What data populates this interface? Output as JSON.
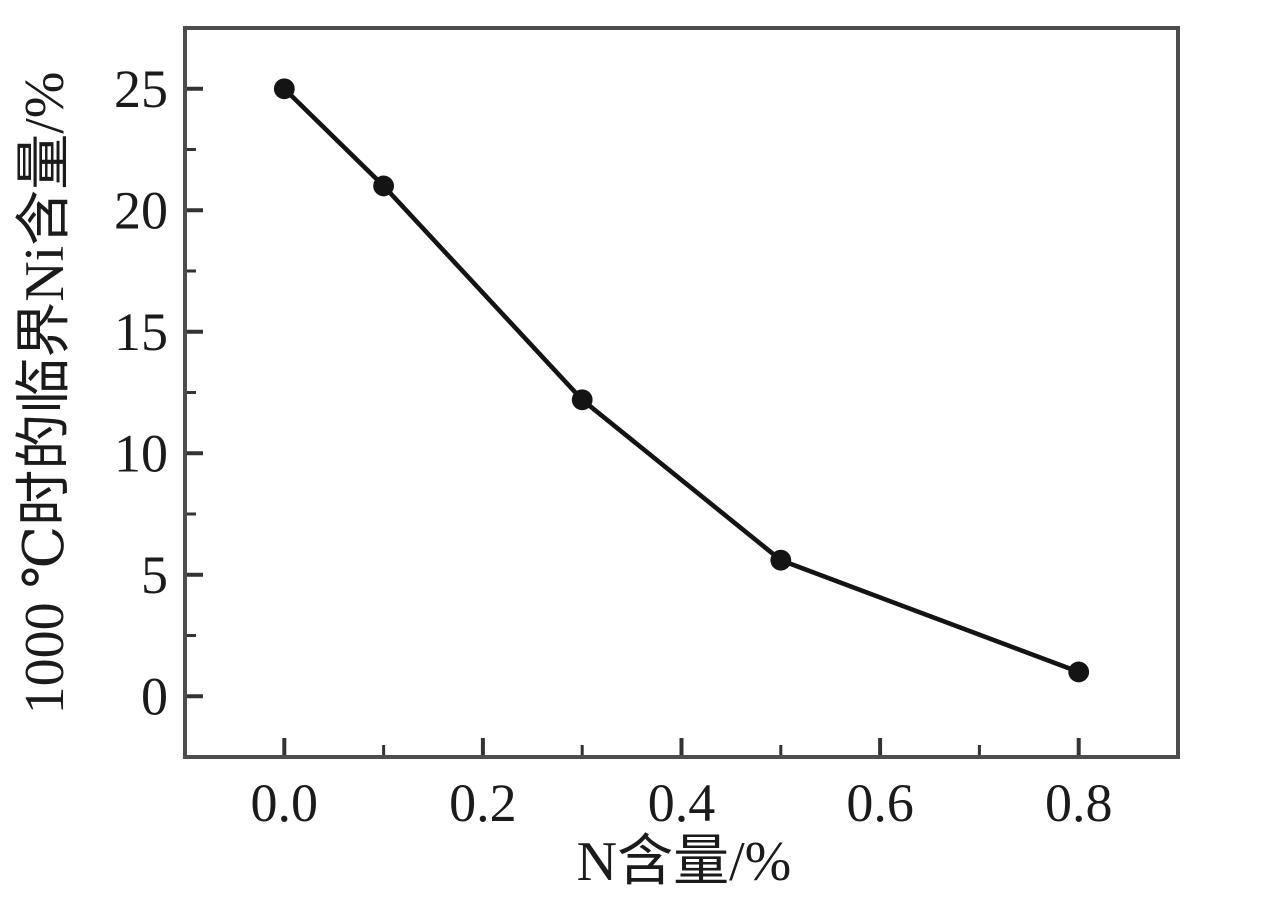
{
  "colors": {
    "background": "#ffffff",
    "ink": "#1b1b1b",
    "line": "#141414",
    "marker": "#141414",
    "frame": "#4d4d4d",
    "tick": "#333333"
  },
  "chart_data": {
    "type": "line",
    "title": "",
    "xlabel": "N含量/%",
    "ylabel": "1000 ℃时的临界Ni含量/%",
    "x": [
      0.0,
      0.1,
      0.3,
      0.5,
      0.8
    ],
    "y": [
      25,
      21,
      12.2,
      5.6,
      1.0
    ],
    "xlim": [
      -0.1,
      0.9
    ],
    "ylim": [
      -2.5,
      27.5
    ],
    "x_major_ticks": [
      0.0,
      0.2,
      0.4,
      0.6,
      0.8
    ],
    "x_major_labels": [
      "0.0",
      "0.2",
      "0.4",
      "0.6",
      "0.8"
    ],
    "x_minor_ticks": [
      0.1,
      0.3,
      0.5,
      0.7
    ],
    "y_major_ticks": [
      0,
      5,
      10,
      15,
      20,
      25
    ],
    "y_major_labels": [
      "0",
      "5",
      "10",
      "15",
      "20",
      "25"
    ],
    "y_minor_ticks": [
      2.5,
      7.5,
      12.5,
      17.5,
      22.5
    ],
    "grid": false,
    "legend": "none",
    "marker": "filled-circle",
    "tick_direction": "in"
  }
}
